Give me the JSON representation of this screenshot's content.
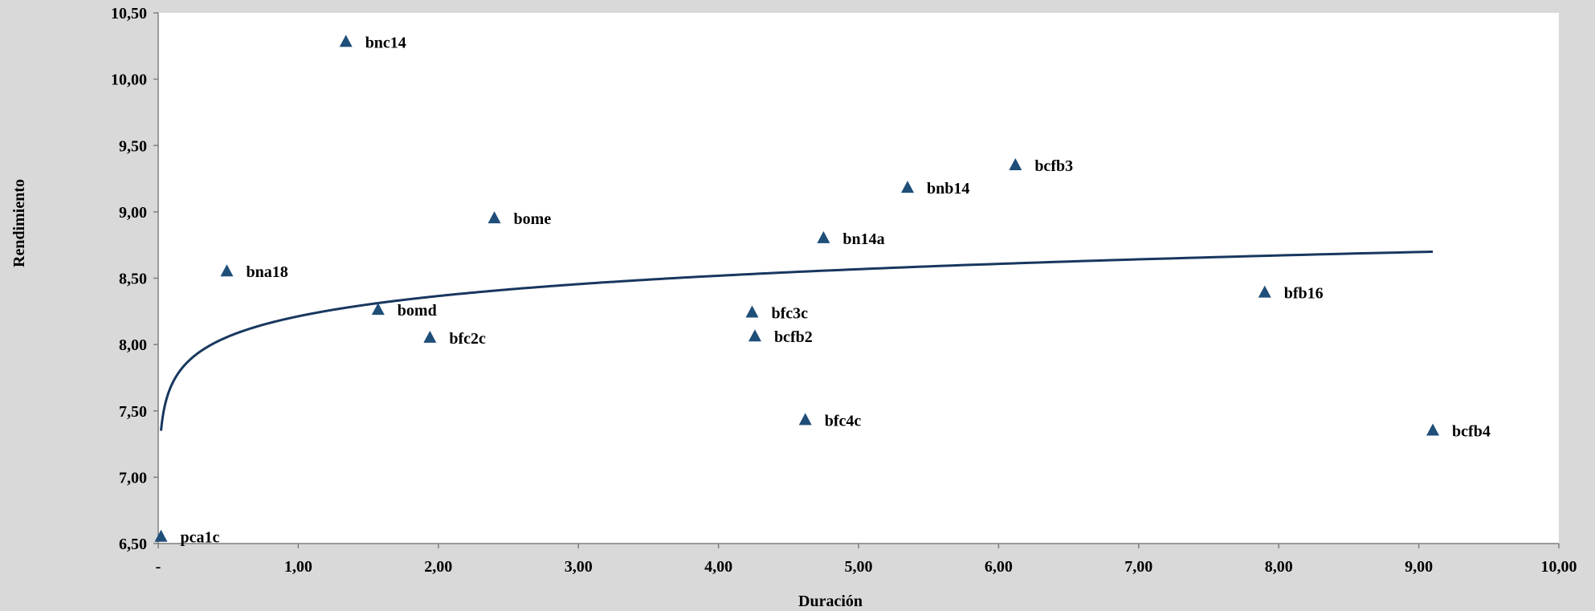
{
  "chart_data": {
    "type": "scatter",
    "xlabel": "Duración",
    "ylabel": "Rendimiento",
    "xlim": [
      0,
      10
    ],
    "ylim": [
      6.5,
      10.5
    ],
    "x_ticks": [
      "-",
      "1,00",
      "2,00",
      "3,00",
      "4,00",
      "5,00",
      "6,00",
      "7,00",
      "8,00",
      "9,00",
      "10,00"
    ],
    "y_ticks": [
      "6,50",
      "7,00",
      "7,50",
      "8,00",
      "8,50",
      "9,00",
      "9,50",
      "10,00",
      "10,50"
    ],
    "grid": false,
    "colors": {
      "marker": "#1f4e79",
      "trend": "#17375e",
      "plot_bg": "#ffffff",
      "page_bg": "#d9d9d9",
      "axis": "#7f7f7f"
    },
    "points": [
      {
        "label": "pca1c",
        "x": 0.02,
        "y": 6.55
      },
      {
        "label": "bna18",
        "x": 0.49,
        "y": 8.55
      },
      {
        "label": "bnc14",
        "x": 1.34,
        "y": 10.28
      },
      {
        "label": "bomd",
        "x": 1.57,
        "y": 8.26
      },
      {
        "label": "bfc2c",
        "x": 1.94,
        "y": 8.05
      },
      {
        "label": "bome",
        "x": 2.4,
        "y": 8.95
      },
      {
        "label": "bfc3c",
        "x": 4.24,
        "y": 8.24
      },
      {
        "label": "bcfb2",
        "x": 4.26,
        "y": 8.06
      },
      {
        "label": "bfc4c",
        "x": 4.62,
        "y": 7.43
      },
      {
        "label": "bn14a",
        "x": 4.75,
        "y": 8.8
      },
      {
        "label": "bnb14",
        "x": 5.35,
        "y": 9.18
      },
      {
        "label": "bcfb3",
        "x": 6.12,
        "y": 9.35
      },
      {
        "label": "bfb16",
        "x": 7.9,
        "y": 8.39
      },
      {
        "label": "bcfb4",
        "x": 9.1,
        "y": 7.35
      }
    ],
    "trendline": {
      "type": "logarithmic",
      "x_start": 0.02,
      "x_end": 9.1,
      "y_start": 7.35,
      "y_end": 8.7
    }
  }
}
